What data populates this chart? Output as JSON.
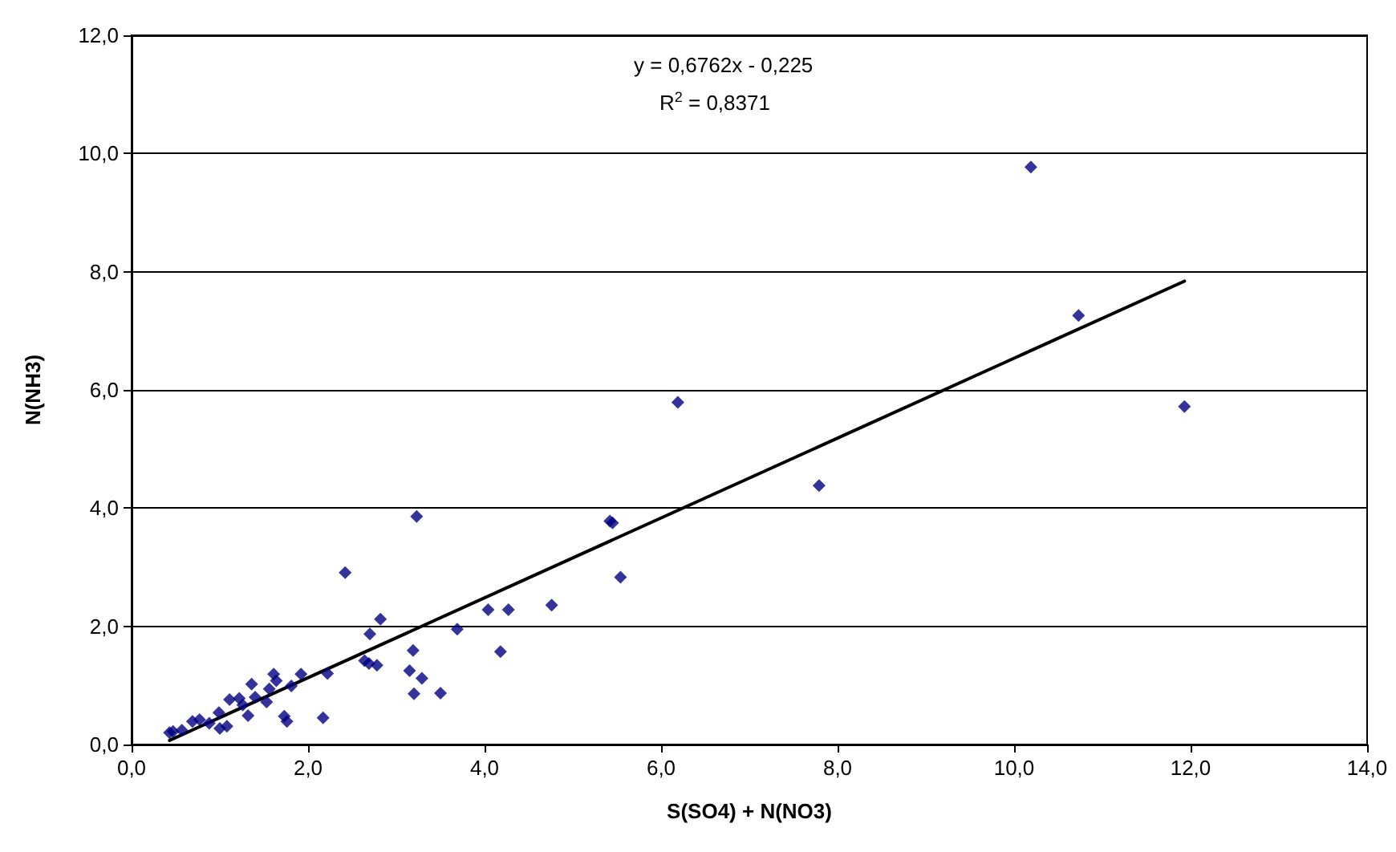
{
  "chart_data": {
    "type": "scatter",
    "xlabel": "S(SO4) + N(NO3)",
    "ylabel": "N(NH3)",
    "annotations": [
      "y = 0,6762x - 0,225",
      "R$^{2}$ = 0,8371"
    ],
    "xlim": [
      0,
      14
    ],
    "ylim": [
      0,
      12
    ],
    "xticks": [
      {
        "value": 0,
        "label": "0,0"
      },
      {
        "value": 2,
        "label": "2,0"
      },
      {
        "value": 4,
        "label": "4,0"
      },
      {
        "value": 6,
        "label": "6,0"
      },
      {
        "value": 8,
        "label": "8,0"
      },
      {
        "value": 10,
        "label": "10,0"
      },
      {
        "value": 12,
        "label": "12,0"
      },
      {
        "value": 14,
        "label": "14,0"
      }
    ],
    "yticks": [
      {
        "value": 0,
        "label": "0,0"
      },
      {
        "value": 2,
        "label": "2,0"
      },
      {
        "value": 4,
        "label": "4,0"
      },
      {
        "value": 6,
        "label": "6,0"
      },
      {
        "value": 8,
        "label": "8,0"
      },
      {
        "value": 10,
        "label": "10,0"
      },
      {
        "value": 12,
        "label": "12,0"
      }
    ],
    "grid": "y",
    "marker": "diamond",
    "series": [
      {
        "type": "scatter",
        "color": "#000080",
        "x": [
          0.43,
          0.47,
          0.57,
          0.69,
          0.77,
          0.88,
          0.99,
          1.0,
          1.08,
          1.11,
          1.22,
          1.26,
          1.32,
          1.36,
          1.4,
          1.53,
          1.56,
          1.61,
          1.64,
          1.73,
          1.76,
          1.81,
          1.92,
          2.17,
          2.22,
          2.42,
          2.64,
          2.69,
          2.7,
          2.78,
          2.82,
          3.15,
          3.19,
          3.2,
          3.23,
          3.29,
          3.5,
          3.69,
          4.04,
          4.18,
          4.27,
          4.76,
          5.42,
          5.45,
          5.54,
          6.19,
          7.79,
          10.19,
          10.73,
          11.93
        ],
        "values": [
          0.2,
          0.22,
          0.24,
          0.39,
          0.42,
          0.36,
          0.54,
          0.27,
          0.31,
          0.76,
          0.78,
          0.67,
          0.49,
          1.02,
          0.8,
          0.72,
          0.94,
          1.19,
          1.08,
          0.48,
          0.39,
          0.99,
          1.19,
          0.45,
          1.2,
          2.91,
          1.42,
          1.37,
          1.87,
          1.34,
          2.12,
          1.25,
          1.59,
          0.86,
          3.86,
          1.12,
          0.87,
          1.95,
          2.28,
          1.57,
          2.28,
          2.36,
          3.78,
          3.75,
          2.83,
          5.79,
          4.38,
          9.77,
          7.26,
          5.72
        ]
      },
      {
        "type": "line",
        "color": "#000000",
        "marker": "none",
        "line_style": "solid",
        "x": [
          0.43,
          11.93
        ],
        "values": [
          0.07,
          7.84
        ]
      }
    ]
  }
}
